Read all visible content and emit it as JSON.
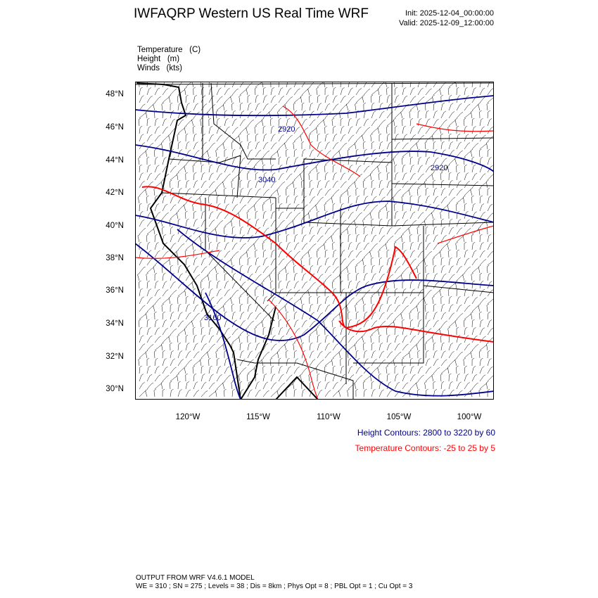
{
  "header": {
    "title": "IWFAQRP Western US Real Time WRF",
    "init": "Init: 2025-12-04_00:00:00",
    "valid": "Valid: 2025-12-09_12:00:00"
  },
  "variables": [
    {
      "name": "Temperature",
      "unit": "(C)"
    },
    {
      "name": "Height",
      "unit": "(m)"
    },
    {
      "name": "Winds",
      "unit": "(kts)"
    }
  ],
  "map": {
    "lat_labels": [
      "48°N",
      "46°N",
      "44°N",
      "42°N",
      "40°N",
      "38°N",
      "36°N",
      "34°N",
      "32°N",
      "30°N"
    ],
    "lon_labels": [
      "120°W",
      "115°W",
      "110°W",
      "105°W",
      "100°W"
    ],
    "contour_labels": [
      "2920",
      "2920",
      "3040",
      "3160"
    ],
    "colors": {
      "height": "#00008b",
      "temperature": "#ff0000",
      "borders": "#000000",
      "barbs": "#000000"
    }
  },
  "legend": {
    "height": "Height Contours: 2800 to 3220 by 60",
    "temperature": "Temperature Contours: -25 to 25 by 5"
  },
  "footer": {
    "line1": "OUTPUT FROM WRF V4.6.1 MODEL",
    "line2": "WE = 310 ; SN = 275 ; Levels = 38 ; Dis = 8km ; Phys Opt = 8 ; PBL Opt = 1 ; Cu Opt = 3"
  }
}
